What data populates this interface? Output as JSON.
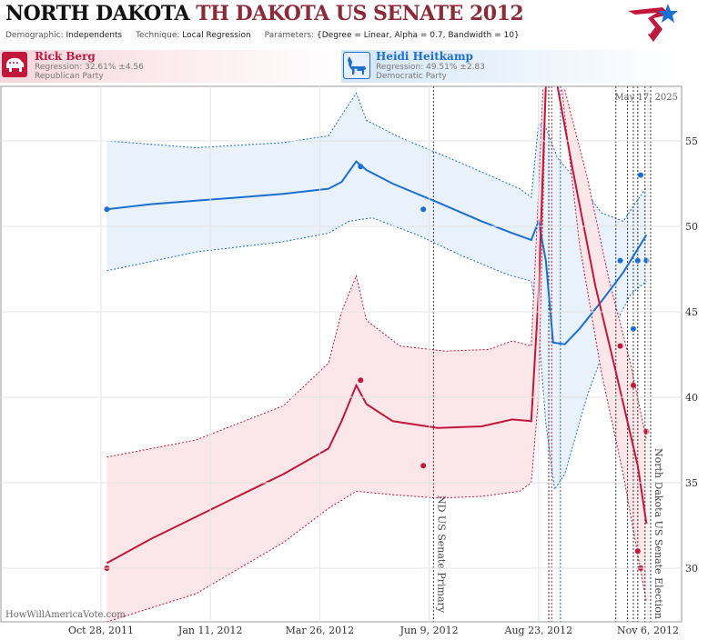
{
  "header": {
    "state": "NORTH DAKOTA",
    "race": "TH DAKOTA US SENATE 2012",
    "demographic_key": "Demographic:",
    "demographic_val": "Independents",
    "technique_key": "Technique:",
    "technique_val": "Local Regression",
    "parameters_key": "Parameters:",
    "parameters_val": "{Degree = Linear, Alpha = 0.7, Bandwidth = 10}"
  },
  "candidates": {
    "rep": {
      "name": "Rick Berg",
      "regression": "Regression: 32.61% ±4.56",
      "party": "Republican Party"
    },
    "dem": {
      "name": "Heidi Heitkamp",
      "regression": "Regression: 49.51% ±2.83",
      "party": "Democratic Party"
    }
  },
  "watermark": "HowWillAmericaVote.com",
  "date_stamp": "May 17, 2025",
  "colors": {
    "rep": "#c0183c",
    "dem": "#1a6fd1",
    "rep_band": "#fbe6ea",
    "dem_band": "#e9f1fa"
  },
  "chart_data": {
    "type": "line",
    "ylim": [
      27,
      58
    ],
    "yticks": [
      30,
      35,
      40,
      45,
      50,
      55
    ],
    "x_range": [
      "2011-10-28",
      "2012-11-08"
    ],
    "xticks": [
      {
        "date": "2011-10-28",
        "label": "Oct 28, 2011"
      },
      {
        "date": "2012-01-11",
        "label": "Jan 11, 2012"
      },
      {
        "date": "2012-03-26",
        "label": "Mar 26, 2012"
      },
      {
        "date": "2012-06-09",
        "label": "Jun 9, 2012"
      },
      {
        "date": "2012-08-23",
        "label": "Aug 23, 2012"
      },
      {
        "date": "2012-11-06",
        "label": "Nov 6, 2012"
      }
    ],
    "events": [
      {
        "date": "2012-06-12",
        "label": "ND US Senate Primary"
      },
      {
        "date": "2012-11-06",
        "label": "North Dakota US Senate Election"
      }
    ],
    "poll_dates": [
      "2012-08-30",
      "2012-09-01",
      "2012-09-07",
      "2012-10-15",
      "2012-10-23",
      "2012-10-27",
      "2012-10-30",
      "2012-11-04"
    ],
    "series": [
      {
        "name": "Heidi Heitkamp",
        "party": "dem",
        "fit": [
          [
            "2011-11-01",
            51.0
          ],
          [
            "2011-12-01",
            51.3
          ],
          [
            "2012-01-01",
            51.5
          ],
          [
            "2012-02-01",
            51.7
          ],
          [
            "2012-03-01",
            51.9
          ],
          [
            "2012-04-01",
            52.2
          ],
          [
            "2012-04-10",
            52.6
          ],
          [
            "2012-04-20",
            53.8
          ],
          [
            "2012-04-27",
            53.3
          ],
          [
            "2012-05-15",
            52.5
          ],
          [
            "2012-06-15",
            51.4
          ],
          [
            "2012-07-15",
            50.3
          ],
          [
            "2012-08-05",
            49.6
          ],
          [
            "2012-08-18",
            49.2
          ],
          [
            "2012-08-23",
            50.3
          ],
          [
            "2012-08-28",
            48.0
          ],
          [
            "2012-09-02",
            43.2
          ],
          [
            "2012-09-10",
            43.1
          ],
          [
            "2012-09-20",
            44.0
          ],
          [
            "2012-10-05",
            45.6
          ],
          [
            "2012-10-20",
            47.3
          ],
          [
            "2012-11-05",
            49.5
          ]
        ],
        "upper": [
          [
            "2011-11-01",
            55.0
          ],
          [
            "2012-01-01",
            54.6
          ],
          [
            "2012-03-01",
            54.9
          ],
          [
            "2012-04-01",
            55.3
          ],
          [
            "2012-04-10",
            56.5
          ],
          [
            "2012-04-20",
            57.8
          ],
          [
            "2012-04-27",
            56.2
          ],
          [
            "2012-05-20",
            55.2
          ],
          [
            "2012-06-20",
            54.1
          ],
          [
            "2012-07-20",
            53.0
          ],
          [
            "2012-08-10",
            52.2
          ],
          [
            "2012-08-18",
            51.7
          ],
          [
            "2012-08-23",
            56.0
          ],
          [
            "2012-08-28",
            55.8
          ],
          [
            "2012-09-05",
            54.0
          ],
          [
            "2012-09-20",
            52.5
          ],
          [
            "2012-10-05",
            50.8
          ],
          [
            "2012-10-20",
            50.3
          ],
          [
            "2012-11-05",
            52.3
          ]
        ],
        "lower": [
          [
            "2011-11-01",
            47.4
          ],
          [
            "2012-01-01",
            48.5
          ],
          [
            "2012-03-01",
            49.1
          ],
          [
            "2012-04-01",
            49.6
          ],
          [
            "2012-04-15",
            50.3
          ],
          [
            "2012-05-01",
            50.5
          ],
          [
            "2012-06-01",
            49.5
          ],
          [
            "2012-07-01",
            48.3
          ],
          [
            "2012-08-01",
            47.2
          ],
          [
            "2012-08-18",
            46.8
          ],
          [
            "2012-08-23",
            44.0
          ],
          [
            "2012-08-28",
            38.5
          ],
          [
            "2012-09-03",
            34.6
          ],
          [
            "2012-09-10",
            35.5
          ],
          [
            "2012-09-25",
            40.0
          ],
          [
            "2012-10-10",
            43.5
          ],
          [
            "2012-10-25",
            46.0
          ],
          [
            "2012-11-05",
            46.8
          ]
        ],
        "polls": [
          [
            "2011-11-01",
            51
          ],
          [
            "2012-04-23",
            53.5
          ],
          [
            "2012-06-05",
            51
          ],
          [
            "2012-10-18",
            48
          ],
          [
            "2012-10-27",
            44
          ],
          [
            "2012-10-30",
            48
          ],
          [
            "2012-11-01",
            53
          ],
          [
            "2012-11-05",
            48
          ]
        ]
      },
      {
        "name": "Rick Berg",
        "party": "rep",
        "fit": [
          [
            "2011-11-01",
            30.3
          ],
          [
            "2011-12-01",
            31.7
          ],
          [
            "2012-01-01",
            33.0
          ],
          [
            "2012-02-01",
            34.3
          ],
          [
            "2012-03-01",
            35.5
          ],
          [
            "2012-04-01",
            37.0
          ],
          [
            "2012-04-10",
            38.6
          ],
          [
            "2012-04-20",
            40.7
          ],
          [
            "2012-04-27",
            39.6
          ],
          [
            "2012-05-15",
            38.6
          ],
          [
            "2012-06-15",
            38.2
          ],
          [
            "2012-07-15",
            38.3
          ],
          [
            "2012-08-05",
            38.7
          ],
          [
            "2012-08-18",
            38.6
          ],
          [
            "2012-08-23",
            46.0
          ],
          [
            "2012-08-28",
            59.0
          ]
        ],
        "fit2": [
          [
            "2012-09-05",
            59.0
          ],
          [
            "2012-09-15",
            53.5
          ],
          [
            "2012-10-01",
            46.5
          ],
          [
            "2012-10-15",
            41.5
          ],
          [
            "2012-10-30",
            36.0
          ],
          [
            "2012-11-05",
            32.6
          ]
        ],
        "upper": [
          [
            "2011-11-01",
            36.5
          ],
          [
            "2012-01-01",
            37.5
          ],
          [
            "2012-03-01",
            39.5
          ],
          [
            "2012-04-01",
            42.0
          ],
          [
            "2012-04-10",
            45.0
          ],
          [
            "2012-04-20",
            47.1
          ],
          [
            "2012-04-27",
            44.5
          ],
          [
            "2012-05-20",
            43.0
          ],
          [
            "2012-06-20",
            42.7
          ],
          [
            "2012-07-20",
            42.8
          ],
          [
            "2012-08-05",
            43.3
          ],
          [
            "2012-08-18",
            43.0
          ],
          [
            "2012-08-23",
            52.0
          ],
          [
            "2012-08-26",
            58.0
          ]
        ],
        "upper2": [
          [
            "2012-09-10",
            58.0
          ],
          [
            "2012-09-25",
            53.0
          ],
          [
            "2012-10-10",
            47.0
          ],
          [
            "2012-10-25",
            42.0
          ],
          [
            "2012-11-05",
            37.5
          ]
        ],
        "lower": [
          [
            "2011-11-01",
            25.0
          ],
          [
            "2012-01-01",
            28.5
          ],
          [
            "2012-03-01",
            31.5
          ],
          [
            "2012-04-01",
            33.5
          ],
          [
            "2012-04-20",
            34.5
          ],
          [
            "2012-05-15",
            34.3
          ],
          [
            "2012-06-15",
            34.1
          ],
          [
            "2012-07-15",
            34.2
          ],
          [
            "2012-08-10",
            34.5
          ],
          [
            "2012-08-18",
            35.0
          ],
          [
            "2012-08-23",
            40.0
          ],
          [
            "2012-08-28",
            58.0
          ]
        ],
        "lower2": [
          [
            "2012-09-08",
            58.0
          ],
          [
            "2012-09-20",
            49.0
          ],
          [
            "2012-10-05",
            41.5
          ],
          [
            "2012-10-20",
            35.5
          ],
          [
            "2012-11-05",
            28.0
          ]
        ],
        "polls": [
          [
            "2011-11-01",
            30
          ],
          [
            "2012-04-23",
            41
          ],
          [
            "2012-06-05",
            36
          ],
          [
            "2012-10-18",
            43
          ],
          [
            "2012-10-27",
            40.7
          ],
          [
            "2012-10-30",
            31
          ],
          [
            "2012-11-01",
            30
          ],
          [
            "2012-11-05",
            38
          ]
        ]
      }
    ]
  }
}
